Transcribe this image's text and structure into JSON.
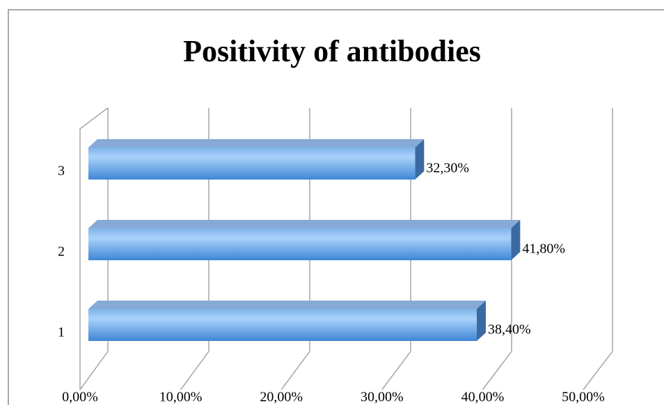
{
  "chart_data": {
    "type": "bar",
    "orientation": "horizontal",
    "title": "Positivity of antibodies",
    "categories": [
      "1",
      "2",
      "3"
    ],
    "values": [
      38.4,
      41.8,
      32.3
    ],
    "value_labels": [
      "38,40%",
      "41,80%",
      "32,30%"
    ],
    "color": "#5b9bd5",
    "xlim": [
      0,
      50
    ],
    "xticks": [
      {
        "value": 0,
        "label": "0,00%"
      },
      {
        "value": 10,
        "label": "10,00%"
      },
      {
        "value": 20,
        "label": "20,00%"
      },
      {
        "value": 30,
        "label": "30,00%"
      },
      {
        "value": 40,
        "label": "40,00%"
      },
      {
        "value": 50,
        "label": "50,00%"
      }
    ],
    "grid": true
  }
}
